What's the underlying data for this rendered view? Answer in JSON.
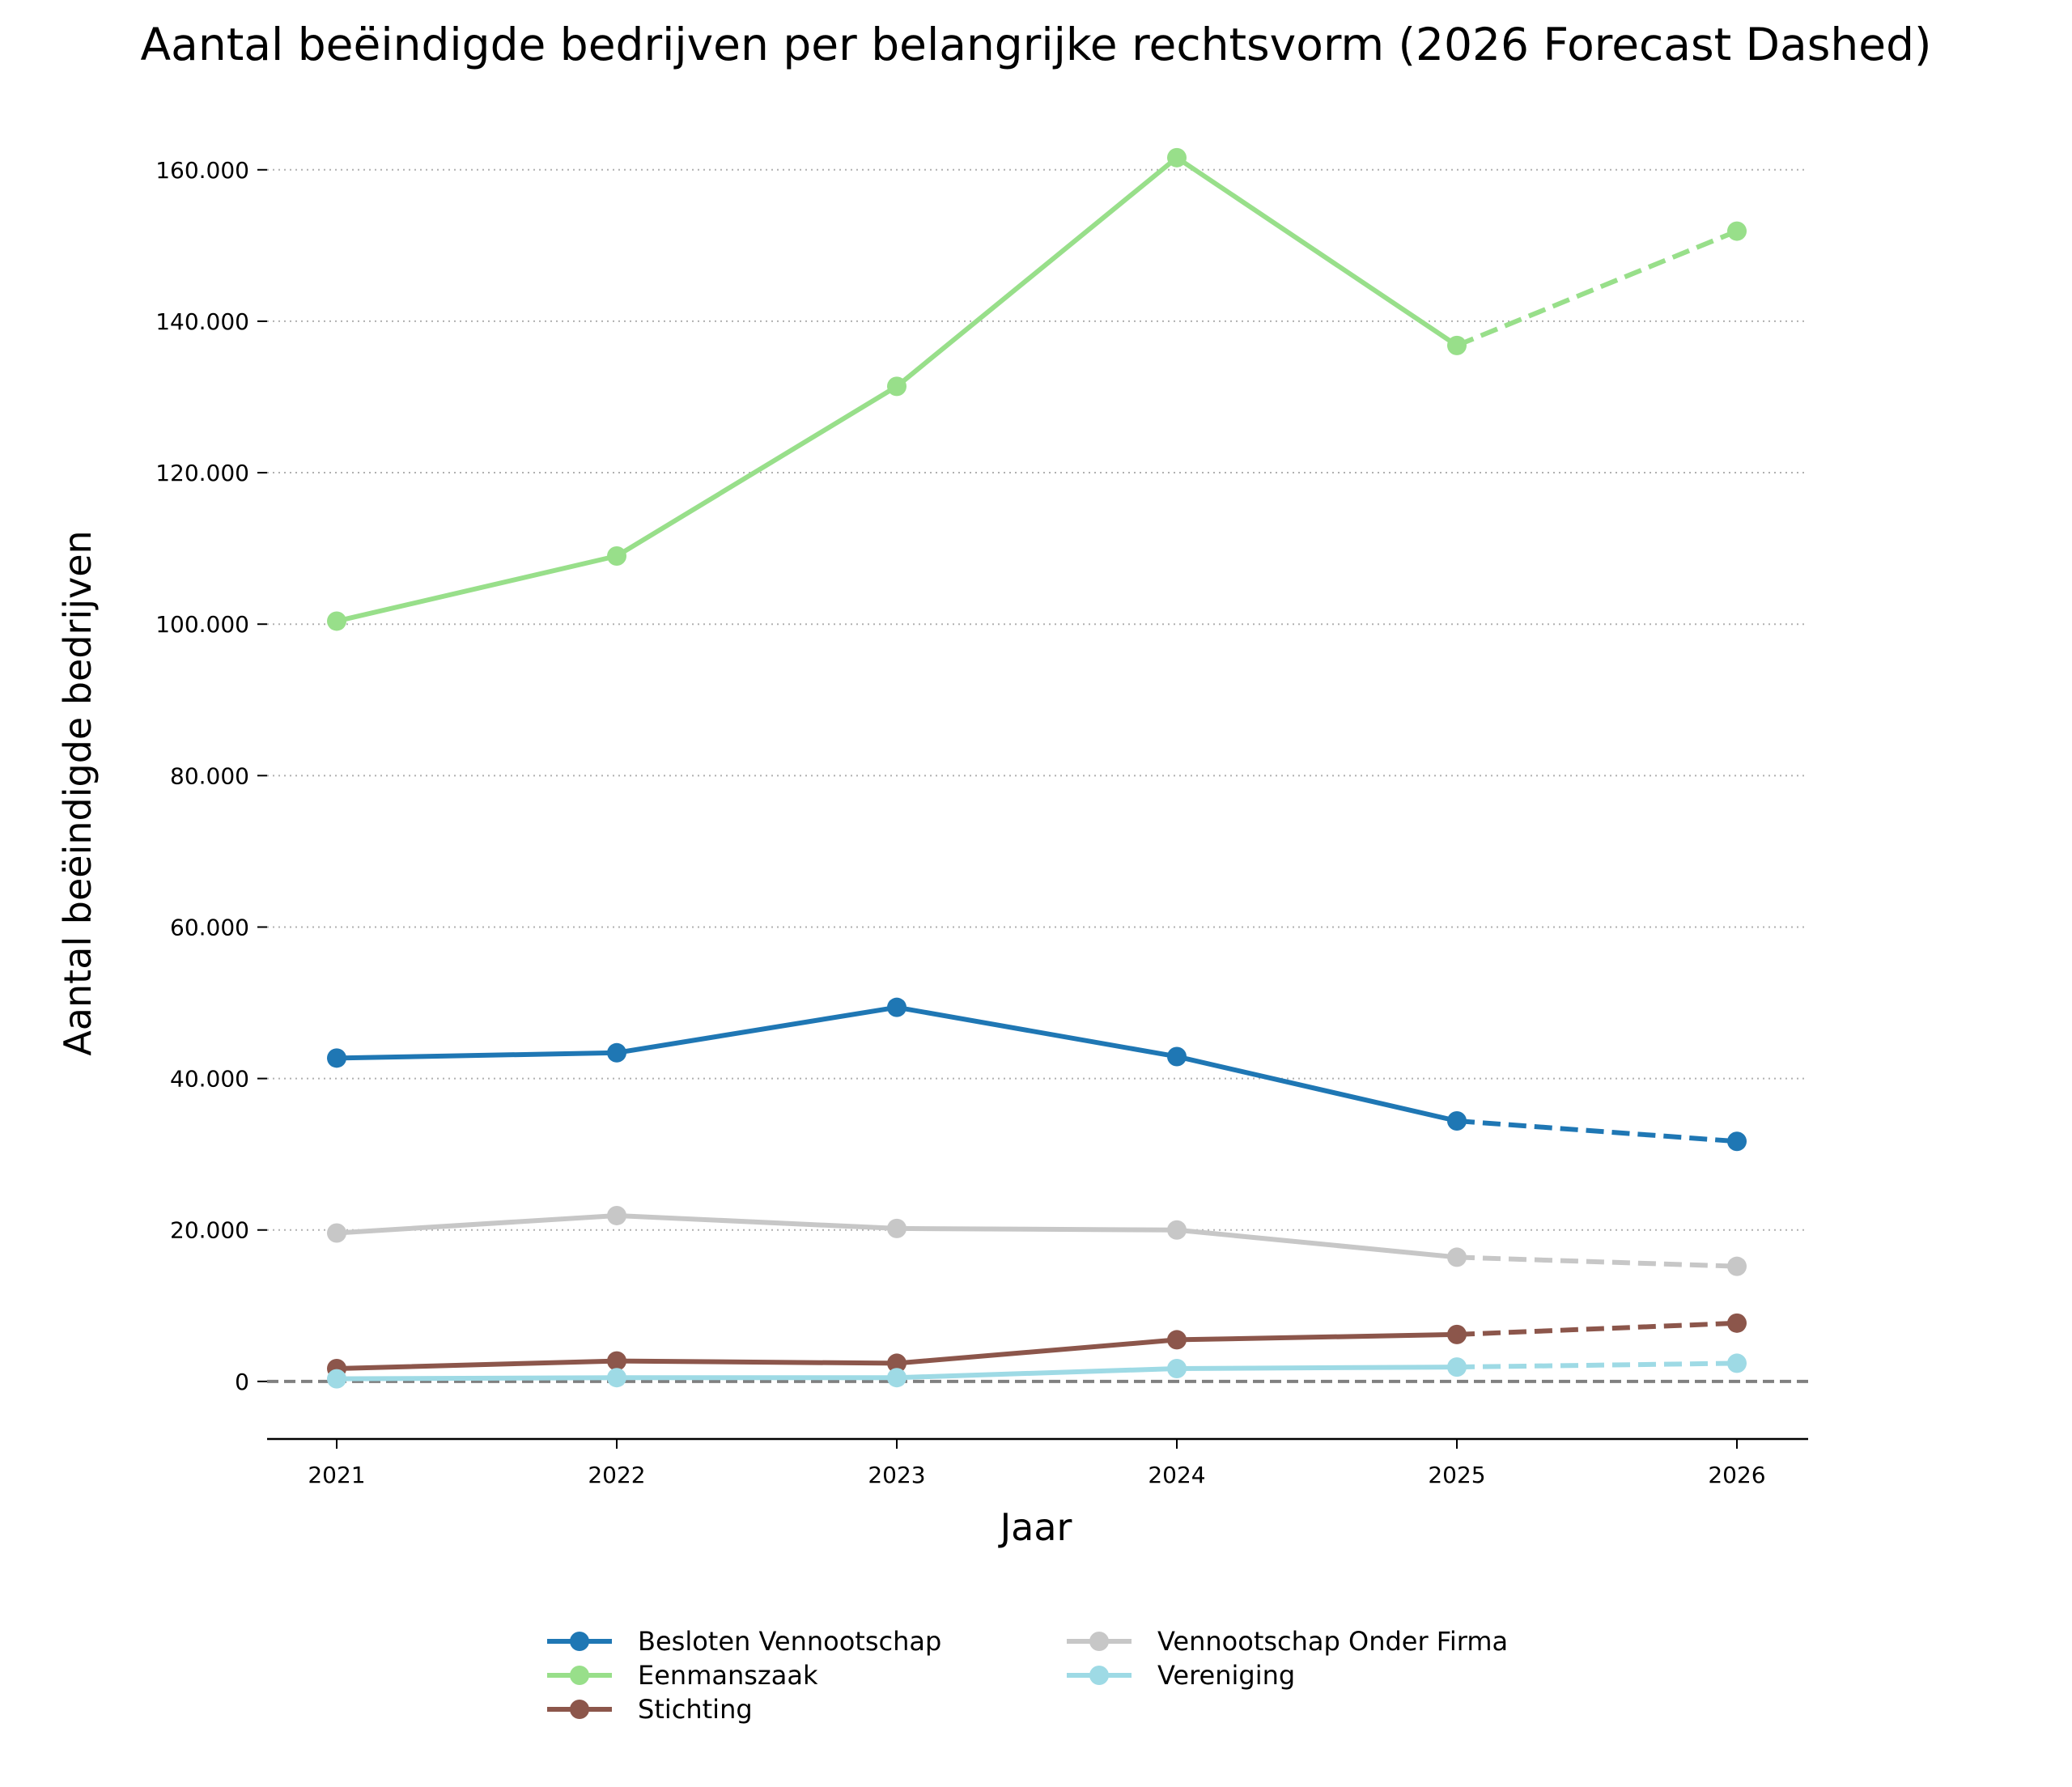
{
  "chart_data": {
    "type": "line",
    "title": "Aantal beëindigde bedrijven per belangrijke rechtsvorm (2026 Forecast Dashed)",
    "xlabel": "Jaar",
    "ylabel": "Aantal beëindigde bedrijven",
    "x": [
      2021,
      2022,
      2023,
      2024,
      2025,
      2026
    ],
    "x_tick_labels": [
      "2021",
      "2022",
      "2023",
      "2024",
      "2025",
      "2026"
    ],
    "forecast_from": 2025,
    "ylim": [
      -7600,
      165000
    ],
    "y_ticks": [
      0,
      20000,
      40000,
      60000,
      80000,
      100000,
      120000,
      140000,
      160000
    ],
    "y_tick_labels": [
      "0",
      "20.000",
      "40.000",
      "60.000",
      "80.000",
      "100.000",
      "120.000",
      "140.000",
      "160.000"
    ],
    "grid": "horizontal dotted",
    "zero_line": {
      "value": 0,
      "color": "#808080",
      "style": "dashed"
    },
    "legend_position": "bottom-center",
    "series": [
      {
        "name": "Besloten Vennootschap",
        "color": "#1f77b4",
        "values": [
          42700,
          43400,
          49400,
          42900,
          34400,
          31700
        ]
      },
      {
        "name": "Eenmanszaak",
        "color": "#98df8a",
        "values": [
          100400,
          109000,
          131400,
          161600,
          136800,
          151900
        ]
      },
      {
        "name": "Stichting",
        "color": "#8c564b",
        "values": [
          1700,
          2700,
          2400,
          5500,
          6200,
          7700
        ]
      },
      {
        "name": "Vennootschap Onder Firma",
        "color": "#c7c7c7",
        "values": [
          19600,
          21900,
          20200,
          20000,
          16400,
          15200
        ]
      },
      {
        "name": "Vereniging",
        "color": "#9edae5",
        "values": [
          350,
          500,
          500,
          1700,
          1900,
          2400
        ]
      }
    ]
  }
}
